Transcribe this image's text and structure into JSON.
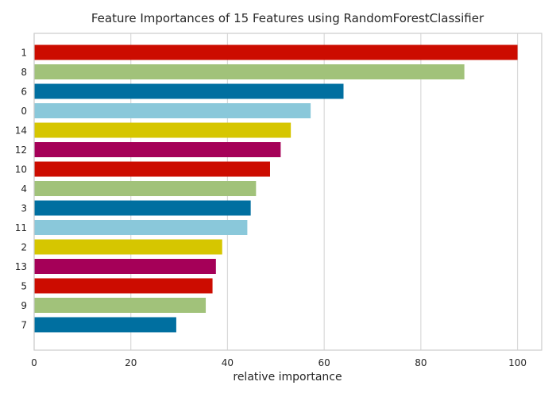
{
  "chart_data": {
    "type": "bar",
    "orientation": "horizontal",
    "title": "Feature Importances of 15 Features using RandomForestClassifier",
    "xlabel": "relative importance",
    "ylabel": "",
    "xlim": [
      0,
      105
    ],
    "xticks": [
      0,
      20,
      40,
      60,
      80,
      100
    ],
    "grid": true,
    "categories": [
      "1",
      "8",
      "6",
      "0",
      "14",
      "12",
      "10",
      "4",
      "3",
      "11",
      "2",
      "13",
      "5",
      "9",
      "7"
    ],
    "values": [
      100,
      89,
      64,
      57.2,
      53.1,
      51,
      48.8,
      45.9,
      44.8,
      44.1,
      38.9,
      37.6,
      36.9,
      35.5,
      29.4
    ],
    "colors": [
      "#cc0c00",
      "#a1c27a",
      "#006fa0",
      "#8ac8da",
      "#d6c600",
      "#a50058",
      "#cc0c00",
      "#a1c27a",
      "#006fa0",
      "#8ac8da",
      "#d6c600",
      "#a50058",
      "#cc0c00",
      "#a1c27a",
      "#006fa0"
    ]
  }
}
